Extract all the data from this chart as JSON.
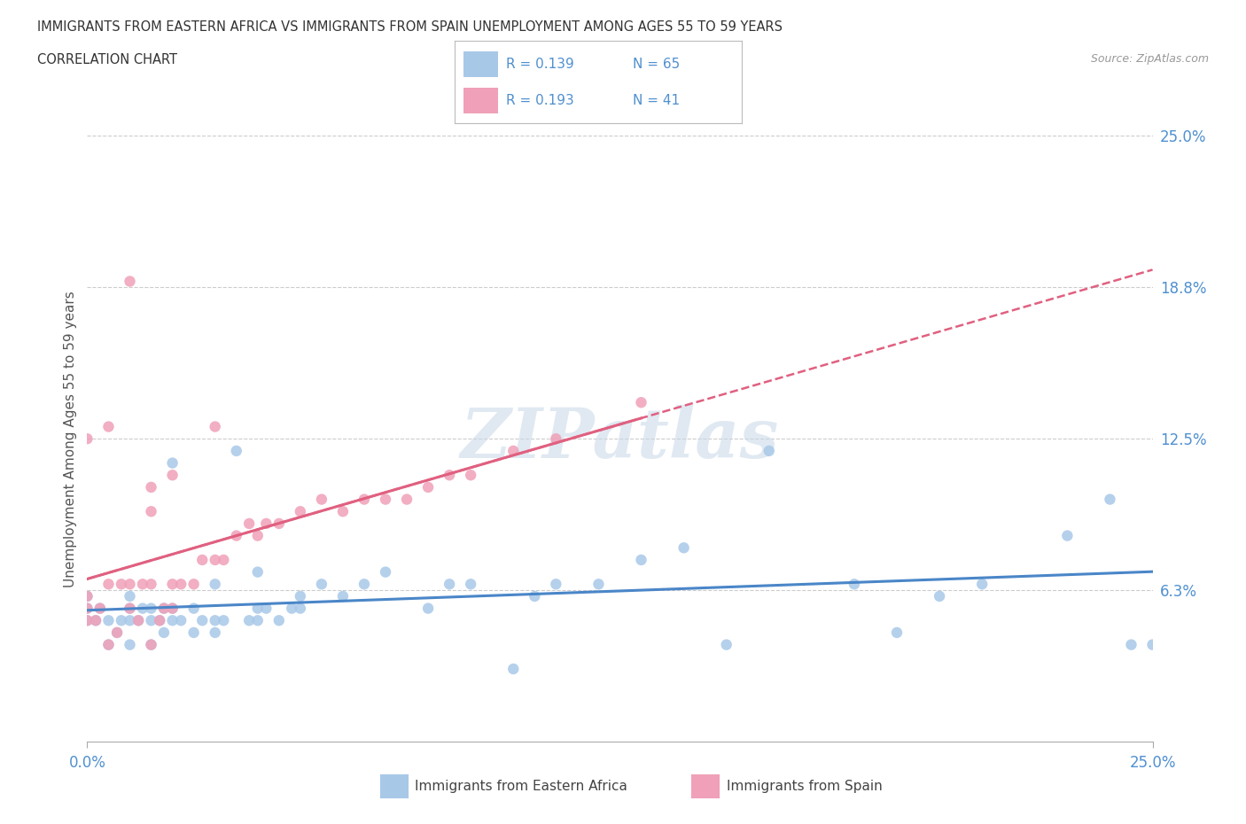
{
  "title_line1": "IMMIGRANTS FROM EASTERN AFRICA VS IMMIGRANTS FROM SPAIN UNEMPLOYMENT AMONG AGES 55 TO 59 YEARS",
  "title_line2": "CORRELATION CHART",
  "source_text": "Source: ZipAtlas.com",
  "ylabel": "Unemployment Among Ages 55 to 59 years",
  "xlim": [
    0.0,
    0.25
  ],
  "ylim": [
    0.0,
    0.25
  ],
  "ytick_values": [
    0.0625,
    0.125,
    0.1875,
    0.25
  ],
  "ytick_labels": [
    "6.3%",
    "12.5%",
    "18.8%",
    "25.0%"
  ],
  "color_blue": "#a8c8e8",
  "color_pink": "#f0a0b8",
  "color_blue_line": "#4a86c8",
  "color_pink_line": "#e06080",
  "color_axis_text": "#5090d0",
  "watermark_text": "ZIPatlas",
  "legend_r1_label": "R = 0.139",
  "legend_n1_label": "N = 65",
  "legend_r2_label": "R = 0.193",
  "legend_n2_label": "N = 41",
  "bottom_legend1": "Immigrants from Eastern Africa",
  "bottom_legend2": "Immigrants from Spain",
  "ea_x": [
    0.0,
    0.0,
    0.0,
    0.002,
    0.003,
    0.005,
    0.005,
    0.007,
    0.008,
    0.01,
    0.01,
    0.01,
    0.01,
    0.012,
    0.013,
    0.015,
    0.015,
    0.015,
    0.017,
    0.018,
    0.018,
    0.02,
    0.02,
    0.02,
    0.022,
    0.025,
    0.025,
    0.027,
    0.03,
    0.03,
    0.03,
    0.032,
    0.035,
    0.038,
    0.04,
    0.04,
    0.04,
    0.042,
    0.045,
    0.048,
    0.05,
    0.05,
    0.055,
    0.06,
    0.065,
    0.07,
    0.08,
    0.085,
    0.09,
    0.1,
    0.105,
    0.11,
    0.12,
    0.13,
    0.14,
    0.15,
    0.16,
    0.18,
    0.19,
    0.2,
    0.21,
    0.23,
    0.24,
    0.245,
    0.25
  ],
  "ea_y": [
    0.05,
    0.055,
    0.06,
    0.05,
    0.055,
    0.04,
    0.05,
    0.045,
    0.05,
    0.04,
    0.05,
    0.055,
    0.06,
    0.05,
    0.055,
    0.04,
    0.05,
    0.055,
    0.05,
    0.045,
    0.055,
    0.05,
    0.055,
    0.115,
    0.05,
    0.045,
    0.055,
    0.05,
    0.045,
    0.05,
    0.065,
    0.05,
    0.12,
    0.05,
    0.05,
    0.055,
    0.07,
    0.055,
    0.05,
    0.055,
    0.055,
    0.06,
    0.065,
    0.06,
    0.065,
    0.07,
    0.055,
    0.065,
    0.065,
    0.03,
    0.06,
    0.065,
    0.065,
    0.075,
    0.08,
    0.04,
    0.12,
    0.065,
    0.045,
    0.06,
    0.065,
    0.085,
    0.1,
    0.04,
    0.04
  ],
  "sp_x": [
    0.0,
    0.0,
    0.0,
    0.002,
    0.003,
    0.005,
    0.005,
    0.007,
    0.008,
    0.01,
    0.01,
    0.012,
    0.013,
    0.015,
    0.015,
    0.017,
    0.018,
    0.02,
    0.02,
    0.022,
    0.025,
    0.027,
    0.03,
    0.032,
    0.035,
    0.038,
    0.04,
    0.042,
    0.045,
    0.05,
    0.055,
    0.06,
    0.065,
    0.07,
    0.075,
    0.08,
    0.085,
    0.09,
    0.1,
    0.11,
    0.13
  ],
  "sp_y": [
    0.05,
    0.055,
    0.06,
    0.05,
    0.055,
    0.04,
    0.065,
    0.045,
    0.065,
    0.055,
    0.065,
    0.05,
    0.065,
    0.04,
    0.065,
    0.05,
    0.055,
    0.055,
    0.065,
    0.065,
    0.065,
    0.075,
    0.075,
    0.075,
    0.085,
    0.09,
    0.085,
    0.09,
    0.09,
    0.095,
    0.1,
    0.095,
    0.1,
    0.1,
    0.1,
    0.105,
    0.11,
    0.11,
    0.12,
    0.125,
    0.14
  ],
  "sp_outlier_x": [
    0.0,
    0.005,
    0.01,
    0.015,
    0.015,
    0.02,
    0.03
  ],
  "sp_outlier_y": [
    0.125,
    0.13,
    0.19,
    0.095,
    0.105,
    0.11,
    0.13
  ]
}
